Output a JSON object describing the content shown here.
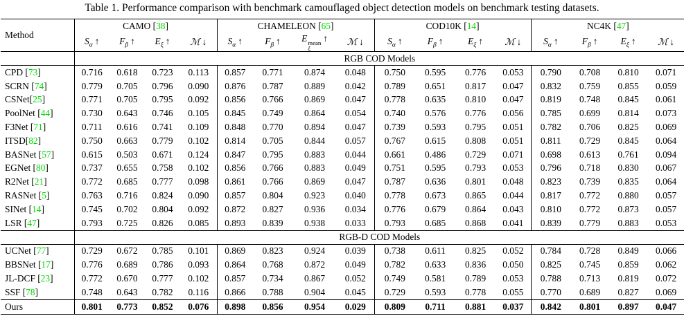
{
  "title": "Table 1. Performance comparison with benchmark camouflaged object detection models on benchmark testing datasets.",
  "method_header": "Method",
  "colors": {
    "citation_green": "#00d800",
    "text": "#000000",
    "background": "#ffffff"
  },
  "datasets": [
    {
      "name": "CAMO",
      "cite": "38",
      "metrics": [
        {
          "base": "S",
          "sub": "α",
          "arrow": "↑"
        },
        {
          "base": "F",
          "sub": "β",
          "arrow": "↑"
        },
        {
          "base": "E",
          "sub": "ξ",
          "arrow": "↑"
        },
        {
          "base": "ℳ",
          "arrow": "↓"
        }
      ]
    },
    {
      "name": "CHAMELEON",
      "cite": "65",
      "metrics": [
        {
          "base": "S",
          "sub": "α",
          "arrow": "↑"
        },
        {
          "base": "F",
          "sub": "β",
          "arrow": "↑"
        },
        {
          "base": "E",
          "sub": "ξ",
          "sup": "mean",
          "arrow": "↑"
        },
        {
          "base": "ℳ",
          "arrow": "↓"
        }
      ]
    },
    {
      "name": "COD10K",
      "cite": "14",
      "metrics": [
        {
          "base": "S",
          "sub": "α",
          "arrow": "↑"
        },
        {
          "base": "F",
          "sub": "β",
          "arrow": "↑"
        },
        {
          "base": "E",
          "sub": "ξ",
          "arrow": "↑"
        },
        {
          "base": "ℳ",
          "arrow": "↓"
        }
      ]
    },
    {
      "name": "NC4K",
      "cite": "47",
      "metrics": [
        {
          "base": "S",
          "sub": "α",
          "arrow": "↑"
        },
        {
          "base": "F",
          "sub": "β",
          "arrow": "↑"
        },
        {
          "base": "E",
          "sub": "ξ",
          "arrow": "↑"
        },
        {
          "base": "ℳ",
          "arrow": "↓"
        }
      ]
    }
  ],
  "sections": [
    {
      "label": "RGB COD Models",
      "rows": [
        {
          "method": "CPD",
          "cite": "73",
          "values": [
            "0.716",
            "0.618",
            "0.723",
            "0.113",
            "0.857",
            "0.771",
            "0.874",
            "0.048",
            "0.750",
            "0.595",
            "0.776",
            "0.053",
            "0.790",
            "0.708",
            "0.810",
            "0.071"
          ]
        },
        {
          "method": "SCRN",
          "cite": "74",
          "values": [
            "0.779",
            "0.705",
            "0.796",
            "0.090",
            "0.876",
            "0.787",
            "0.889",
            "0.042",
            "0.789",
            "0.651",
            "0.817",
            "0.047",
            "0.832",
            "0.759",
            "0.855",
            "0.059"
          ]
        },
        {
          "method": "CSNet",
          "cite": "25",
          "nospace": true,
          "values": [
            "0.771",
            "0.705",
            "0.795",
            "0.092",
            "0.856",
            "0.766",
            "0.869",
            "0.047",
            "0.778",
            "0.635",
            "0.810",
            "0.047",
            "0.819",
            "0.748",
            "0.845",
            "0.061"
          ]
        },
        {
          "method": "PoolNet",
          "cite": "44",
          "values": [
            "0.730",
            "0.643",
            "0.746",
            "0.105",
            "0.845",
            "0.749",
            "0.864",
            "0.054",
            "0.740",
            "0.576",
            "0.776",
            "0.056",
            "0.785",
            "0.699",
            "0.814",
            "0.073"
          ]
        },
        {
          "method": "F3Net",
          "cite": "71",
          "values": [
            "0.711",
            "0.616",
            "0.741",
            "0.109",
            "0.848",
            "0.770",
            "0.894",
            "0.047",
            "0.739",
            "0.593",
            "0.795",
            "0.051",
            "0.782",
            "0.706",
            "0.825",
            "0.069"
          ]
        },
        {
          "method": "ITSD",
          "cite": "82",
          "nospace": true,
          "values": [
            "0.750",
            "0.663",
            "0.779",
            "0.102",
            "0.814",
            "0.705",
            "0.844",
            "0.057",
            "0.767",
            "0.615",
            "0.808",
            "0.051",
            "0.811",
            "0.729",
            "0.845",
            "0.064"
          ]
        },
        {
          "method": "BASNet",
          "cite": "57",
          "values": [
            "0.615",
            "0.503",
            "0.671",
            "0.124",
            "0.847",
            "0.795",
            "0.883",
            "0.044",
            "0.661",
            "0.486",
            "0.729",
            "0.071",
            "0.698",
            "0.613",
            "0.761",
            "0.094"
          ]
        },
        {
          "method": "EGNet",
          "cite": "80",
          "values": [
            "0.737",
            "0.655",
            "0.758",
            "0.102",
            "0.856",
            "0.766",
            "0.883",
            "0.049",
            "0.751",
            "0.595",
            "0.793",
            "0.053",
            "0.796",
            "0.718",
            "0.830",
            "0.067"
          ]
        },
        {
          "method": "R2Net",
          "cite": "21",
          "values": [
            "0.772",
            "0.685",
            "0.777",
            "0.098",
            "0.861",
            "0.766",
            "0.869",
            "0.047",
            "0.787",
            "0.636",
            "0.801",
            "0.048",
            "0.823",
            "0.739",
            "0.835",
            "0.064"
          ]
        },
        {
          "method": "RASNet",
          "cite": "5",
          "values": [
            "0.763",
            "0.716",
            "0.824",
            "0.090",
            "0.857",
            "0.804",
            "0.923",
            "0.040",
            "0.778",
            "0.673",
            "0.865",
            "0.044",
            "0.817",
            "0.772",
            "0.880",
            "0.057"
          ]
        },
        {
          "method": "SINet",
          "cite": "14",
          "values": [
            "0.745",
            "0.702",
            "0.804",
            "0.092",
            "0.872",
            "0.827",
            "0.936",
            "0.034",
            "0.776",
            "0.679",
            "0.864",
            "0.043",
            "0.810",
            "0.772",
            "0.873",
            "0.057"
          ]
        },
        {
          "method": "LSR",
          "cite": "47",
          "values": [
            "0.793",
            "0.725",
            "0.826",
            "0.085",
            "0.893",
            "0.839",
            "0.938",
            "0.033",
            "0.793",
            "0.685",
            "0.868",
            "0.041",
            "0.839",
            "0.779",
            "0.883",
            "0.053"
          ]
        }
      ]
    },
    {
      "label": "RGB-D COD Models",
      "rows": [
        {
          "method": "UCNet",
          "cite": "77",
          "values": [
            "0.729",
            "0.672",
            "0.785",
            "0.101",
            "0.869",
            "0.823",
            "0.924",
            "0.039",
            "0.738",
            "0.611",
            "0.825",
            "0.052",
            "0.784",
            "0.728",
            "0.849",
            "0.066"
          ]
        },
        {
          "method": "BBSNet",
          "cite": "17",
          "values": [
            "0.776",
            "0.689",
            "0.786",
            "0.093",
            "0.864",
            "0.768",
            "0.872",
            "0.049",
            "0.782",
            "0.633",
            "0.836",
            "0.050",
            "0.825",
            "0.745",
            "0.859",
            "0.062"
          ]
        },
        {
          "method": "JL-DCF",
          "cite": "23",
          "values": [
            "0.772",
            "0.670",
            "0.777",
            "0.102",
            "0.857",
            "0.734",
            "0.867",
            "0.052",
            "0.749",
            "0.581",
            "0.789",
            "0.053",
            "0.788",
            "0.713",
            "0.819",
            "0.072"
          ]
        },
        {
          "method": "SSF",
          "cite": "78",
          "values": [
            "0.748",
            "0.643",
            "0.782",
            "0.116",
            "0.866",
            "0.788",
            "0.904",
            "0.045",
            "0.729",
            "0.593",
            "0.778",
            "0.055",
            "0.770",
            "0.689",
            "0.827",
            "0.069"
          ]
        },
        {
          "method": "Ours",
          "bold": true,
          "values": [
            "0.801",
            "0.773",
            "0.852",
            "0.076",
            "0.898",
            "0.856",
            "0.954",
            "0.029",
            "0.809",
            "0.711",
            "0.881",
            "0.037",
            "0.842",
            "0.801",
            "0.897",
            "0.047"
          ]
        }
      ]
    }
  ]
}
